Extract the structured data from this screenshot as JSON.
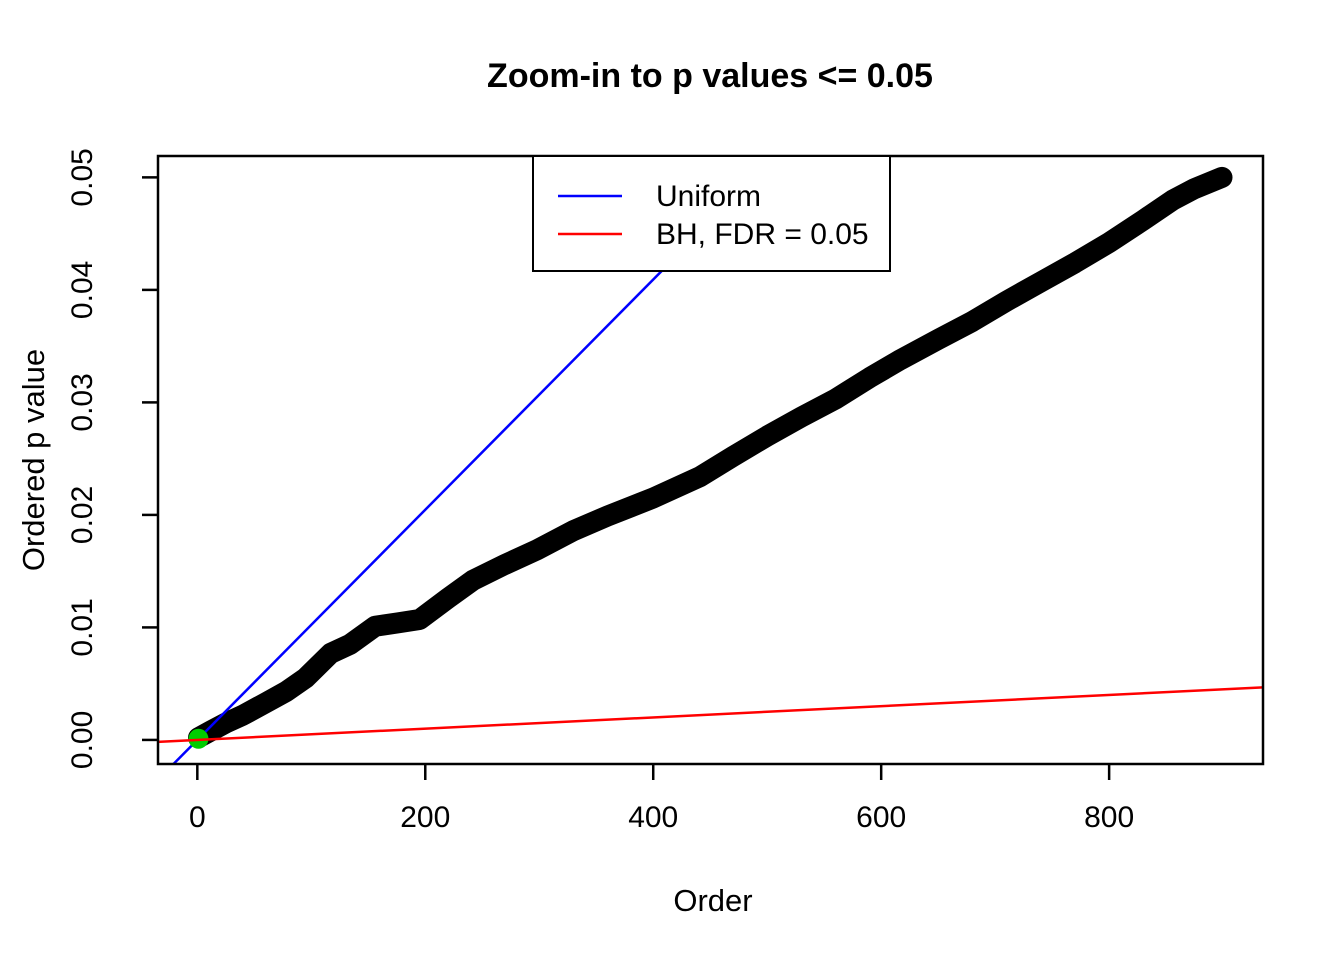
{
  "figure": {
    "background": "#ffffff",
    "border_color": "#000000"
  },
  "chart_data": {
    "type": "scatter",
    "title": "Zoom-in to p values <= 0.05",
    "xlabel": "Order",
    "ylabel": "Ordered p value",
    "xlim": [
      -34.5,
      935
    ],
    "ylim": [
      -0.00214,
      0.0519
    ],
    "x_ticks": {
      "values": [
        0,
        200,
        400,
        600,
        800
      ],
      "labels": [
        "0",
        "200",
        "400",
        "600",
        "800"
      ]
    },
    "y_ticks": {
      "values": [
        0.0,
        0.01,
        0.02,
        0.03,
        0.04,
        0.05
      ],
      "labels": [
        "0.00",
        "0.01",
        "0.02",
        "0.03",
        "0.04",
        "0.05"
      ]
    },
    "grid": false,
    "series": [
      {
        "name": "ordered-p-values",
        "style": "thick-dot-line",
        "color": "#000000",
        "points": [
          [
            1,
            0.0002
          ],
          [
            12,
            0.0008
          ],
          [
            25,
            0.0015
          ],
          [
            40,
            0.0022
          ],
          [
            60,
            0.0033
          ],
          [
            78,
            0.0043
          ],
          [
            95,
            0.0055
          ],
          [
            117,
            0.0077
          ],
          [
            134,
            0.0085
          ],
          [
            156,
            0.0101
          ],
          [
            176,
            0.0104
          ],
          [
            195,
            0.0107
          ],
          [
            220,
            0.0126
          ],
          [
            242,
            0.0142
          ],
          [
            270,
            0.0156
          ],
          [
            298,
            0.0169
          ],
          [
            330,
            0.0186
          ],
          [
            360,
            0.0199
          ],
          [
            400,
            0.0215
          ],
          [
            441,
            0.0234
          ],
          [
            470,
            0.0252
          ],
          [
            500,
            0.027
          ],
          [
            530,
            0.0287
          ],
          [
            560,
            0.0303
          ],
          [
            590,
            0.0322
          ],
          [
            617,
            0.0338
          ],
          [
            650,
            0.0356
          ],
          [
            680,
            0.0372
          ],
          [
            710,
            0.039
          ],
          [
            740,
            0.0407
          ],
          [
            770,
            0.0424
          ],
          [
            800,
            0.0442
          ],
          [
            830,
            0.0462
          ],
          [
            856,
            0.048
          ],
          [
            875,
            0.049
          ],
          [
            899,
            0.05
          ]
        ]
      }
    ],
    "reference_lines": [
      {
        "name": "uniform-line",
        "color": "#0000FF",
        "slope": 0.0001023,
        "intercept": 0
      },
      {
        "name": "bh-line",
        "color": "#FF0000",
        "slope": 5e-06,
        "intercept": 0
      }
    ],
    "highlight_point": {
      "x": 1,
      "y": 0.0001,
      "color": "#00CD00",
      "radius_px": 10
    },
    "legend": {
      "position": "top-center-inside",
      "items": [
        {
          "label": "Uniform",
          "color": "#0000FF"
        },
        {
          "label": "BH, FDR = 0.05",
          "color": "#FF0000"
        }
      ]
    }
  }
}
